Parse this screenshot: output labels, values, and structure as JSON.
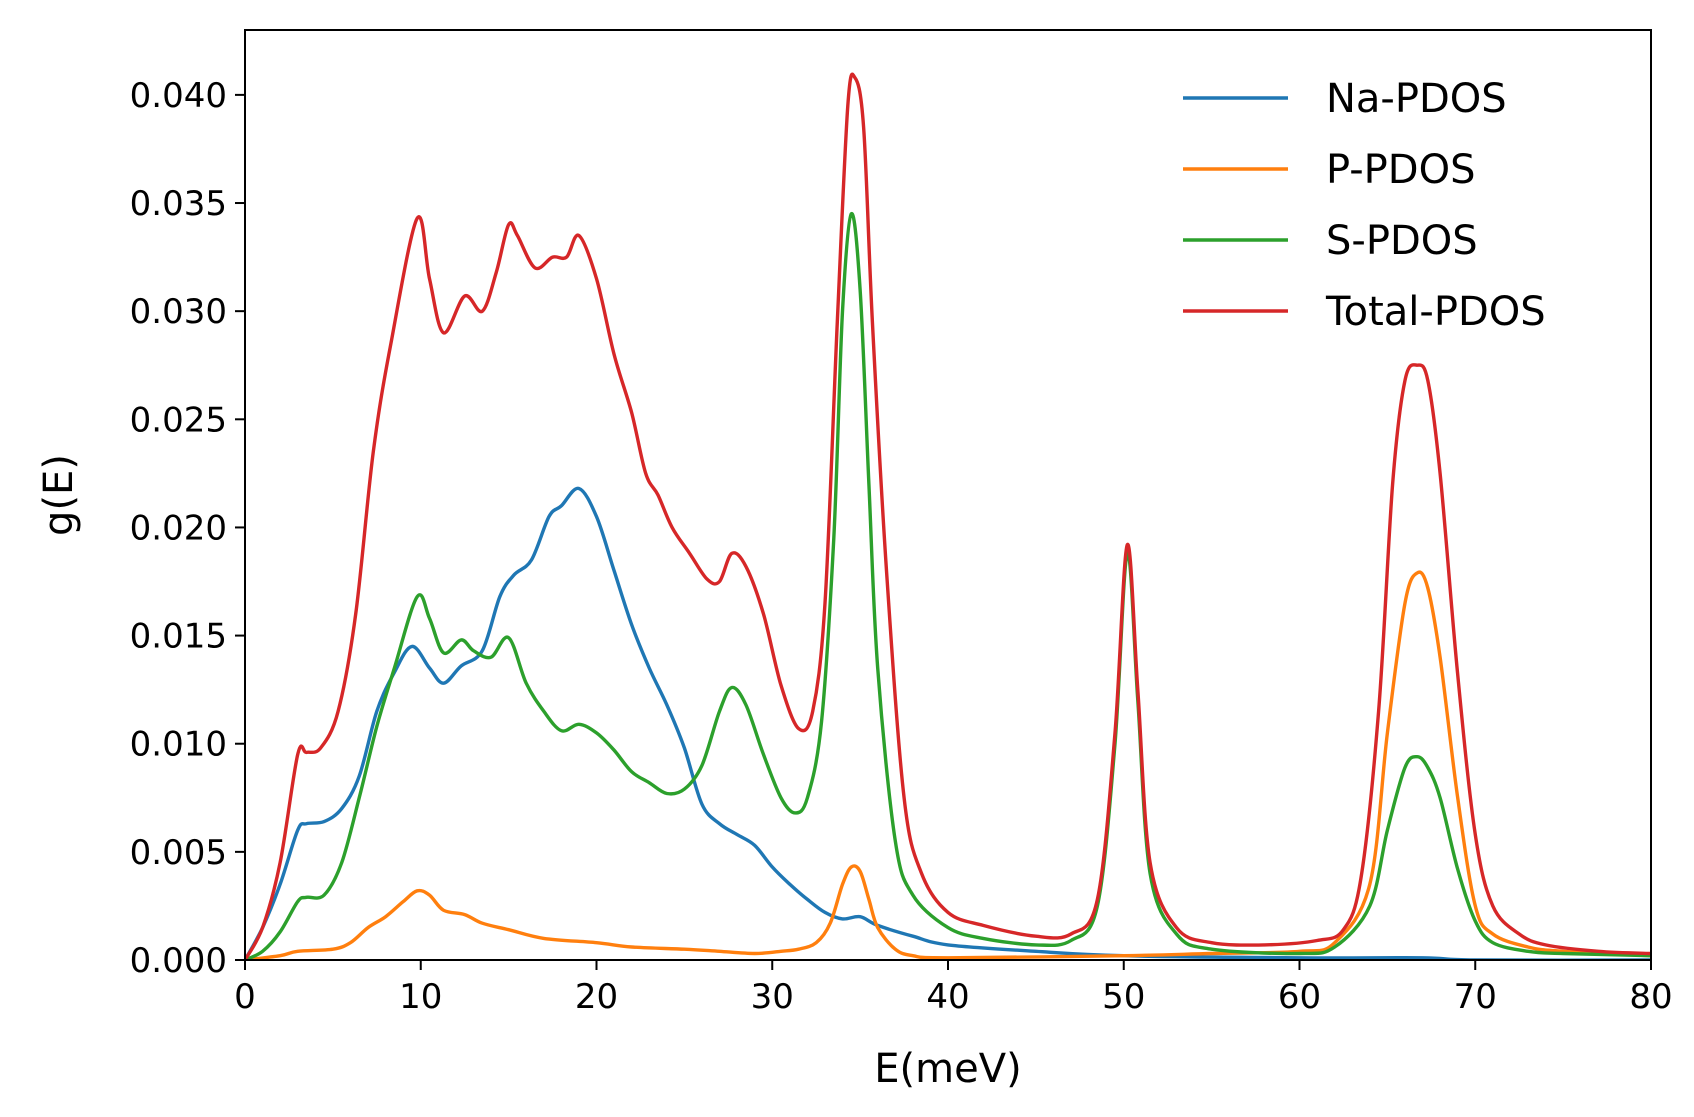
{
  "chart_data": {
    "type": "line",
    "xlabel": "E(meV)",
    "ylabel": "g(E)",
    "xlim": [
      0,
      80
    ],
    "ylim": [
      0,
      0.043
    ],
    "xticks": [
      0,
      10,
      20,
      30,
      40,
      50,
      60,
      70,
      80
    ],
    "xtick_labels": [
      "0",
      "10",
      "20",
      "30",
      "40",
      "50",
      "60",
      "70",
      "80"
    ],
    "yticks": [
      0,
      0.005,
      0.01,
      0.015,
      0.02,
      0.025,
      0.03,
      0.035,
      0.04
    ],
    "ytick_labels": [
      "0.000",
      "0.005",
      "0.010",
      "0.015",
      "0.020",
      "0.025",
      "0.030",
      "0.035",
      "0.040"
    ],
    "grid": false,
    "legend_position": "top-right",
    "series": [
      {
        "name": "Na-PDOS",
        "color": "#1f77b4",
        "points": [
          [
            0,
            0.0
          ],
          [
            1,
            0.0015
          ],
          [
            2,
            0.0035
          ],
          [
            3,
            0.006
          ],
          [
            3.5,
            0.0063
          ],
          [
            4.5,
            0.0064
          ],
          [
            5.5,
            0.007
          ],
          [
            6.5,
            0.0085
          ],
          [
            7.5,
            0.0115
          ],
          [
            8.5,
            0.0133
          ],
          [
            9.5,
            0.0145
          ],
          [
            10.5,
            0.0135
          ],
          [
            11.3,
            0.0128
          ],
          [
            12.3,
            0.0136
          ],
          [
            13.5,
            0.0143
          ],
          [
            14.5,
            0.0168
          ],
          [
            15.3,
            0.0178
          ],
          [
            16.3,
            0.0185
          ],
          [
            17.3,
            0.0205
          ],
          [
            18,
            0.021
          ],
          [
            19,
            0.0218
          ],
          [
            20,
            0.0205
          ],
          [
            21,
            0.018
          ],
          [
            22,
            0.0155
          ],
          [
            23,
            0.0135
          ],
          [
            24,
            0.0118
          ],
          [
            25,
            0.0098
          ],
          [
            26,
            0.0072
          ],
          [
            27,
            0.0063
          ],
          [
            28,
            0.0058
          ],
          [
            29,
            0.0053
          ],
          [
            30,
            0.0043
          ],
          [
            31,
            0.0035
          ],
          [
            32,
            0.0028
          ],
          [
            33,
            0.0022
          ],
          [
            34,
            0.0019
          ],
          [
            35,
            0.002
          ],
          [
            36,
            0.0016
          ],
          [
            38,
            0.0011
          ],
          [
            40,
            0.0007
          ],
          [
            45,
            0.0004
          ],
          [
            50,
            0.0002
          ],
          [
            60,
            0.0001
          ],
          [
            67,
            0.0001
          ],
          [
            70,
            0.0
          ],
          [
            80,
            0.0
          ]
        ]
      },
      {
        "name": "P-PDOS",
        "color": "#ff7f0e",
        "points": [
          [
            0,
            0.0
          ],
          [
            2,
            0.0002
          ],
          [
            3,
            0.0004
          ],
          [
            5,
            0.0005
          ],
          [
            6,
            0.0008
          ],
          [
            7,
            0.0015
          ],
          [
            8,
            0.002
          ],
          [
            9,
            0.0027
          ],
          [
            9.8,
            0.0032
          ],
          [
            10.5,
            0.003
          ],
          [
            11.3,
            0.0023
          ],
          [
            12.5,
            0.0021
          ],
          [
            13.5,
            0.0017
          ],
          [
            15,
            0.0014
          ],
          [
            17,
            0.001
          ],
          [
            20,
            0.0008
          ],
          [
            22,
            0.0006
          ],
          [
            25,
            0.0005
          ],
          [
            27,
            0.0004
          ],
          [
            29,
            0.0003
          ],
          [
            30.5,
            0.0004
          ],
          [
            31.5,
            0.0005
          ],
          [
            32.5,
            0.0008
          ],
          [
            33.3,
            0.0017
          ],
          [
            34,
            0.0035
          ],
          [
            34.5,
            0.0043
          ],
          [
            35,
            0.0041
          ],
          [
            35.5,
            0.0028
          ],
          [
            36,
            0.0015
          ],
          [
            37,
            0.0005
          ],
          [
            38,
            0.0002
          ],
          [
            40,
            0.0001
          ],
          [
            50,
            0.0002
          ],
          [
            55,
            0.0003
          ],
          [
            60,
            0.0004
          ],
          [
            62,
            0.0008
          ],
          [
            64,
            0.0035
          ],
          [
            65,
            0.0105
          ],
          [
            66,
            0.0165
          ],
          [
            66.7,
            0.0179
          ],
          [
            67.3,
            0.0172
          ],
          [
            68,
            0.014
          ],
          [
            69,
            0.0075
          ],
          [
            70,
            0.0025
          ],
          [
            71,
            0.0012
          ],
          [
            73,
            0.0006
          ],
          [
            75,
            0.0004
          ],
          [
            80,
            0.0002
          ]
        ]
      },
      {
        "name": "S-PDOS",
        "color": "#2ca02c",
        "points": [
          [
            0,
            0.0
          ],
          [
            1,
            0.0004
          ],
          [
            2,
            0.0013
          ],
          [
            3,
            0.0027
          ],
          [
            3.5,
            0.0029
          ],
          [
            4.5,
            0.003
          ],
          [
            5.5,
            0.0045
          ],
          [
            6.5,
            0.0075
          ],
          [
            7.5,
            0.0108
          ],
          [
            8.5,
            0.0135
          ],
          [
            9.8,
            0.0168
          ],
          [
            10.5,
            0.0158
          ],
          [
            11.3,
            0.0142
          ],
          [
            12.3,
            0.0148
          ],
          [
            13,
            0.0143
          ],
          [
            14,
            0.014
          ],
          [
            15,
            0.0149
          ],
          [
            16,
            0.0128
          ],
          [
            17,
            0.0115
          ],
          [
            18,
            0.0106
          ],
          [
            19,
            0.0109
          ],
          [
            20,
            0.0105
          ],
          [
            21,
            0.0097
          ],
          [
            22,
            0.0087
          ],
          [
            23,
            0.0082
          ],
          [
            24,
            0.0077
          ],
          [
            25,
            0.0079
          ],
          [
            26,
            0.009
          ],
          [
            27,
            0.0115
          ],
          [
            27.7,
            0.0126
          ],
          [
            28.5,
            0.0118
          ],
          [
            29.5,
            0.0095
          ],
          [
            30.5,
            0.0075
          ],
          [
            31.3,
            0.0068
          ],
          [
            32,
            0.0075
          ],
          [
            32.8,
            0.011
          ],
          [
            33.5,
            0.0195
          ],
          [
            34,
            0.03
          ],
          [
            34.5,
            0.0345
          ],
          [
            35,
            0.031
          ],
          [
            35.5,
            0.022
          ],
          [
            36,
            0.0135
          ],
          [
            37,
            0.0055
          ],
          [
            38,
            0.003
          ],
          [
            40,
            0.0015
          ],
          [
            42,
            0.001
          ],
          [
            45,
            0.0007
          ],
          [
            47,
            0.0009
          ],
          [
            48.5,
            0.0025
          ],
          [
            49.5,
            0.01
          ],
          [
            50.2,
            0.0188
          ],
          [
            50.8,
            0.012
          ],
          [
            51.5,
            0.004
          ],
          [
            53,
            0.0012
          ],
          [
            55,
            0.0005
          ],
          [
            60,
            0.0003
          ],
          [
            62,
            0.0006
          ],
          [
            64,
            0.0025
          ],
          [
            65,
            0.006
          ],
          [
            66,
            0.0089
          ],
          [
            66.7,
            0.0094
          ],
          [
            67.3,
            0.0089
          ],
          [
            68,
            0.0075
          ],
          [
            69,
            0.0042
          ],
          [
            70,
            0.0018
          ],
          [
            71,
            0.0008
          ],
          [
            73,
            0.0004
          ],
          [
            75,
            0.0003
          ],
          [
            80,
            0.0002
          ]
        ]
      },
      {
        "name": "Total-PDOS",
        "color": "#d62728",
        "points": [
          [
            0,
            0.0
          ],
          [
            1,
            0.0015
          ],
          [
            2,
            0.0045
          ],
          [
            3,
            0.0095
          ],
          [
            3.5,
            0.0096
          ],
          [
            4.3,
            0.0098
          ],
          [
            5.3,
            0.0115
          ],
          [
            6.3,
            0.016
          ],
          [
            7.3,
            0.0235
          ],
          [
            8.3,
            0.0285
          ],
          [
            9.8,
            0.0343
          ],
          [
            10.5,
            0.0315
          ],
          [
            11.3,
            0.029
          ],
          [
            12.5,
            0.0307
          ],
          [
            13.5,
            0.03
          ],
          [
            14.3,
            0.0318
          ],
          [
            15,
            0.034
          ],
          [
            15.5,
            0.0335
          ],
          [
            16.5,
            0.032
          ],
          [
            17.5,
            0.0325
          ],
          [
            18.3,
            0.0325
          ],
          [
            19,
            0.0335
          ],
          [
            20,
            0.0315
          ],
          [
            21,
            0.028
          ],
          [
            22,
            0.0253
          ],
          [
            22.8,
            0.0225
          ],
          [
            23.5,
            0.0215
          ],
          [
            24.3,
            0.02
          ],
          [
            25.3,
            0.0188
          ],
          [
            26.3,
            0.0176
          ],
          [
            27,
            0.0175
          ],
          [
            27.7,
            0.0188
          ],
          [
            28.5,
            0.0182
          ],
          [
            29.5,
            0.016
          ],
          [
            30.5,
            0.0127
          ],
          [
            31.5,
            0.0107
          ],
          [
            32.3,
            0.0115
          ],
          [
            33,
            0.0165
          ],
          [
            33.7,
            0.0295
          ],
          [
            34.3,
            0.0395
          ],
          [
            34.7,
            0.0408
          ],
          [
            35.2,
            0.0385
          ],
          [
            35.7,
            0.0295
          ],
          [
            36.5,
            0.018
          ],
          [
            37.5,
            0.0075
          ],
          [
            38.5,
            0.004
          ],
          [
            40,
            0.0022
          ],
          [
            42,
            0.0016
          ],
          [
            45,
            0.0011
          ],
          [
            47,
            0.0012
          ],
          [
            48.5,
            0.0028
          ],
          [
            49.5,
            0.0105
          ],
          [
            50.2,
            0.0192
          ],
          [
            50.8,
            0.0125
          ],
          [
            51.5,
            0.0045
          ],
          [
            53,
            0.0015
          ],
          [
            55,
            0.0008
          ],
          [
            58,
            0.0007
          ],
          [
            61,
            0.0009
          ],
          [
            62.5,
            0.0014
          ],
          [
            63.5,
            0.0038
          ],
          [
            64.5,
            0.0115
          ],
          [
            65.3,
            0.022
          ],
          [
            66,
            0.0268
          ],
          [
            66.7,
            0.0275
          ],
          [
            67.3,
            0.0268
          ],
          [
            68,
            0.0225
          ],
          [
            69,
            0.0132
          ],
          [
            70,
            0.0058
          ],
          [
            71,
            0.0025
          ],
          [
            72.5,
            0.0012
          ],
          [
            74,
            0.0007
          ],
          [
            77,
            0.0004
          ],
          [
            80,
            0.0003
          ]
        ]
      }
    ]
  }
}
